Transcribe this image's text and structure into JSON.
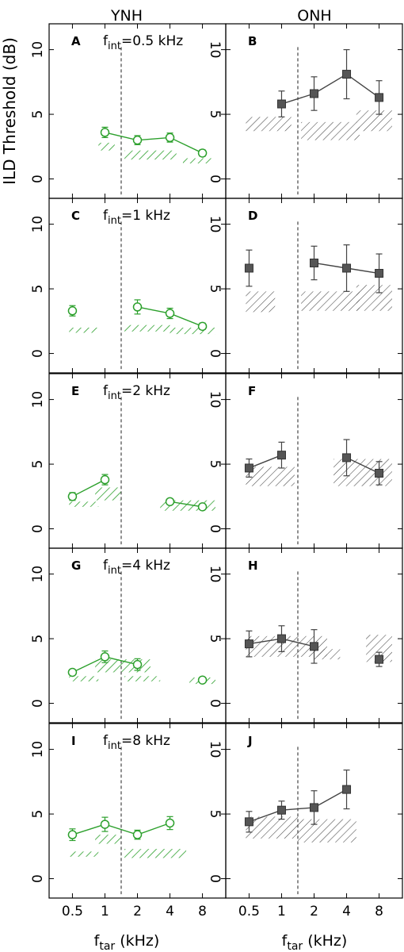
{
  "figure": {
    "column_titles": [
      "YNH",
      "ONH"
    ],
    "ylabel": "ILD Threshold (dB)",
    "xlabel_main": "f",
    "xlabel_sub": "tar",
    "xlabel_unit": " (kHz)",
    "fint_main": "f",
    "fint_sub": "int"
  },
  "chart_data": {
    "type": "line",
    "x_ticks": [
      "0.5",
      "1",
      "2",
      "4",
      "8"
    ],
    "y_ticks": [
      "0",
      "5",
      "10"
    ],
    "ylim": [
      -1.5,
      12
    ],
    "xlabel": "ftar (kHz)",
    "ylabel": "ILD Threshold (dB)",
    "colors": {
      "YNH": "#2ca02c",
      "ONH": "#444444",
      "divider": "#444444"
    },
    "panels": [
      {
        "label": "A",
        "group": "YNH",
        "fint_text": "=0.5  kHz",
        "divider_x": 1.5,
        "points": [
          [
            1,
            3.6,
            0.4
          ],
          [
            2,
            3.0,
            0.35
          ],
          [
            3,
            3.2,
            0.35
          ],
          [
            4,
            2.0,
            0.25
          ]
        ],
        "lines": [
          [
            1,
            2,
            3,
            4
          ]
        ],
        "shade": [
          [
            0.8,
            1.3,
            2.2,
            2.8
          ],
          [
            1.6,
            3.2,
            1.5,
            2.2
          ],
          [
            3.4,
            4.3,
            1.2,
            1.6
          ]
        ]
      },
      {
        "label": "B",
        "group": "ONH",
        "fint_text": "",
        "divider_x": 1.5,
        "points": [
          [
            1,
            5.8,
            1.0
          ],
          [
            2,
            6.6,
            1.3
          ],
          [
            3,
            8.1,
            1.9
          ],
          [
            4,
            6.3,
            1.3
          ]
        ],
        "lines": [
          [
            1,
            2,
            3,
            4
          ]
        ],
        "shade": [
          [
            -0.1,
            1.3,
            3.7,
            4.8
          ],
          [
            1.6,
            3.4,
            3.0,
            4.4
          ],
          [
            3.3,
            4.4,
            3.7,
            5.3
          ]
        ]
      },
      {
        "label": "C",
        "group": "YNH",
        "fint_text": "=1  kHz",
        "divider_x": 1.5,
        "points": [
          [
            0,
            3.3,
            0.4
          ],
          [
            2,
            3.6,
            0.55
          ],
          [
            3,
            3.1,
            0.4
          ],
          [
            4,
            2.1,
            0.25
          ]
        ],
        "lines": [
          [
            2,
            3,
            4
          ]
        ],
        "shade": [
          [
            -0.1,
            0.8,
            1.6,
            2.0
          ],
          [
            1.6,
            3.0,
            1.7,
            2.2
          ],
          [
            3.0,
            4.4,
            1.5,
            2.0
          ]
        ]
      },
      {
        "label": "D",
        "group": "ONH",
        "fint_text": "",
        "divider_x": 1.5,
        "points": [
          [
            0,
            6.6,
            1.4
          ],
          [
            2,
            7.0,
            1.3
          ],
          [
            3,
            6.6,
            1.8
          ],
          [
            4,
            6.2,
            1.5
          ]
        ],
        "lines": [
          [
            2,
            3,
            4
          ]
        ],
        "shade": [
          [
            -0.1,
            0.8,
            3.2,
            4.8
          ],
          [
            1.6,
            3.4,
            3.3,
            4.8
          ],
          [
            3.3,
            4.4,
            3.3,
            5.3
          ]
        ]
      },
      {
        "label": "E",
        "group": "YNH",
        "fint_text": "=2  kHz",
        "divider_x": 1.5,
        "points": [
          [
            0,
            2.5,
            0.3
          ],
          [
            1,
            3.8,
            0.4
          ],
          [
            3,
            2.1,
            0.2
          ],
          [
            4,
            1.7,
            0.2
          ]
        ],
        "lines": [
          [
            0,
            1
          ],
          [
            3,
            4
          ]
        ],
        "shade": [
          [
            -0.1,
            0.8,
            1.7,
            2.1
          ],
          [
            0.7,
            1.5,
            2.2,
            3.2
          ],
          [
            2.7,
            4.4,
            1.4,
            2.2
          ]
        ]
      },
      {
        "label": "F",
        "group": "ONH",
        "fint_text": "",
        "divider_x": 1.5,
        "points": [
          [
            0,
            4.7,
            0.7
          ],
          [
            1,
            5.7,
            1.0
          ],
          [
            3,
            5.5,
            1.4
          ],
          [
            4,
            4.3,
            0.9
          ]
        ],
        "lines": [
          [
            0,
            1
          ],
          [
            3,
            4
          ]
        ],
        "shade": [
          [
            -0.1,
            1.4,
            3.3,
            4.8
          ],
          [
            2.6,
            4.4,
            3.3,
            5.4
          ]
        ]
      },
      {
        "label": "G",
        "group": "YNH",
        "fint_text": "=4  kHz",
        "divider_x": 1.5,
        "points": [
          [
            0,
            2.4,
            0.2
          ],
          [
            1,
            3.6,
            0.45
          ],
          [
            2,
            3.0,
            0.45
          ],
          [
            4,
            1.8,
            0.2
          ]
        ],
        "lines": [
          [
            0,
            1,
            2
          ]
        ],
        "shade": [
          [
            -0.1,
            0.8,
            1.7,
            2.1
          ],
          [
            0.7,
            2.4,
            2.4,
            3.4
          ],
          [
            1.6,
            2.7,
            1.7,
            2.1
          ],
          [
            3.6,
            4.4,
            1.5,
            2.0
          ]
        ]
      },
      {
        "label": "H",
        "group": "ONH",
        "fint_text": "",
        "divider_x": 1.5,
        "points": [
          [
            0,
            4.6,
            1.0
          ],
          [
            1,
            5.0,
            1.0
          ],
          [
            2,
            4.4,
            1.3
          ],
          [
            4,
            3.4,
            0.55
          ]
        ],
        "lines": [
          [
            0,
            1,
            2
          ]
        ],
        "shade": [
          [
            -0.1,
            2.4,
            3.6,
            5.2
          ],
          [
            2.0,
            2.8,
            3.4,
            4.2
          ],
          [
            3.6,
            4.4,
            3.2,
            5.3
          ]
        ]
      },
      {
        "label": "I",
        "group": "YNH",
        "fint_text": "=8  kHz",
        "divider_x": 1.5,
        "points": [
          [
            0,
            3.4,
            0.45
          ],
          [
            1,
            4.2,
            0.55
          ],
          [
            2,
            3.4,
            0.35
          ],
          [
            3,
            4.3,
            0.5
          ]
        ],
        "lines": [
          [
            0,
            1,
            2,
            3
          ]
        ],
        "shade": [
          [
            -0.1,
            0.8,
            1.7,
            2.1
          ],
          [
            0.7,
            1.5,
            2.7,
            3.4
          ],
          [
            1.6,
            3.5,
            1.6,
            2.3
          ]
        ]
      },
      {
        "label": "J",
        "group": "ONH",
        "fint_text": "",
        "divider_x": 1.5,
        "points": [
          [
            0,
            4.4,
            0.8
          ],
          [
            1,
            5.3,
            0.7
          ],
          [
            2,
            5.5,
            1.3
          ],
          [
            3,
            6.9,
            1.5
          ]
        ],
        "lines": [
          [
            0,
            1,
            2,
            3
          ]
        ],
        "shade": [
          [
            -0.1,
            1.5,
            3.1,
            4.8
          ],
          [
            1.5,
            3.3,
            2.8,
            4.6
          ]
        ]
      }
    ]
  }
}
